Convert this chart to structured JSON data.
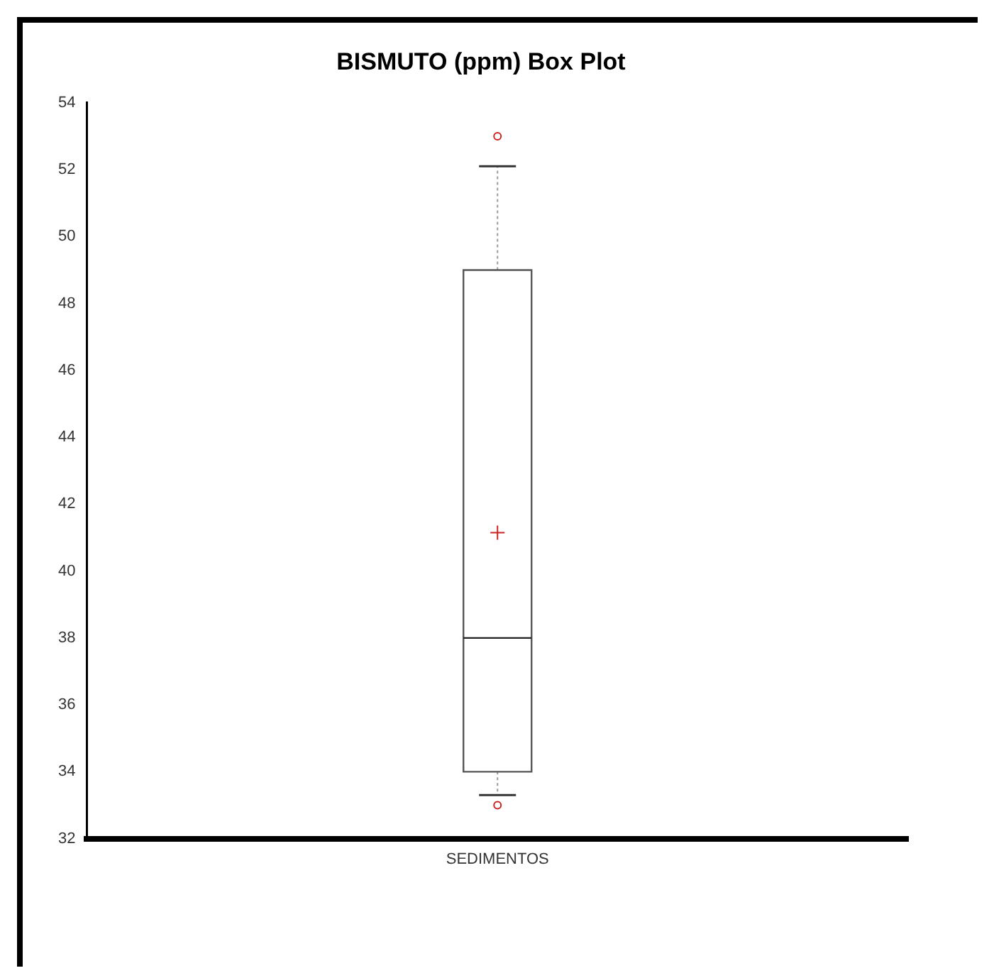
{
  "chart_data": {
    "type": "box",
    "title": "BISMUTO (ppm) Box Plot",
    "categories": [
      "SEDIMENTOS"
    ],
    "boxes": [
      {
        "low": 33.3,
        "q1": 34,
        "median": 38,
        "q3": 49,
        "high": 52.1,
        "mean": 41.15,
        "outliers": [
          33,
          53
        ]
      }
    ],
    "ylim": [
      32,
      54
    ],
    "yticks": [
      32,
      34,
      36,
      38,
      40,
      42,
      44,
      46,
      48,
      50,
      52,
      54
    ],
    "grid": false,
    "legend": false
  }
}
